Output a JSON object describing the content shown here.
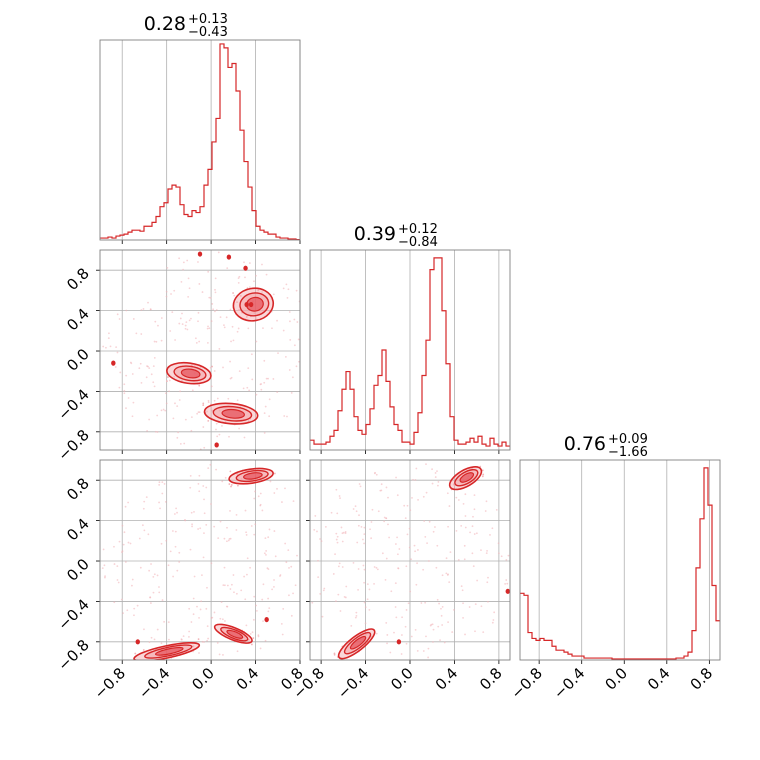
{
  "colors": {
    "line": "#d62728",
    "fill": "#f4a6aa",
    "dense": "#e0313c",
    "grid": "#b0b0b0",
    "frame": "#808080",
    "scatter": "#f2b6ba"
  },
  "chart_data": [
    {
      "type": "histogram",
      "panel": "diag-0",
      "title": {
        "value": "0.28",
        "plus": "+0.13",
        "minus": "−0.43"
      },
      "xlim": [
        -1.0,
        0.8
      ],
      "x_ticks": [
        -0.8,
        -0.4,
        0.0,
        0.4,
        0.8
      ],
      "x_tick_labels": [],
      "edges_start": -1.0,
      "edge_step": 0.036,
      "values": [
        0.01,
        0.01,
        0.015,
        0.01,
        0.02,
        0.025,
        0.03,
        0.04,
        0.05,
        0.05,
        0.045,
        0.07,
        0.07,
        0.09,
        0.12,
        0.17,
        0.19,
        0.26,
        0.28,
        0.27,
        0.18,
        0.13,
        0.12,
        0.15,
        0.14,
        0.17,
        0.28,
        0.36,
        0.5,
        0.62,
        1.0,
        0.98,
        0.88,
        0.9,
        0.76,
        0.56,
        0.4,
        0.27,
        0.15,
        0.07,
        0.05,
        0.04,
        0.03,
        0.03,
        0.015,
        0.01,
        0.01,
        0.005,
        0.005,
        0.002
      ]
    },
    {
      "type": "histogram",
      "panel": "diag-1",
      "title": {
        "value": "0.39",
        "plus": "+0.12",
        "minus": "−0.84"
      },
      "xlim": [
        -0.9,
        0.9
      ],
      "x_ticks": [
        -0.8,
        -0.4,
        0.0,
        0.4,
        0.8
      ],
      "x_tick_labels": [],
      "edges_start": -0.9,
      "edge_step": 0.036,
      "values": [
        0.05,
        0.03,
        0.03,
        0.03,
        0.04,
        0.07,
        0.1,
        0.2,
        0.31,
        0.4,
        0.31,
        0.17,
        0.1,
        0.08,
        0.13,
        0.21,
        0.33,
        0.38,
        0.51,
        0.35,
        0.22,
        0.13,
        0.1,
        0.04,
        0.04,
        0.03,
        0.09,
        0.19,
        0.38,
        0.56,
        0.92,
        0.98,
        0.98,
        0.71,
        0.44,
        0.17,
        0.05,
        0.03,
        0.03,
        0.04,
        0.06,
        0.04,
        0.07,
        0.03,
        0.02,
        0.06,
        0.03,
        0.02,
        0.04,
        0.02
      ]
    },
    {
      "type": "histogram",
      "panel": "diag-2",
      "title": {
        "value": "0.76",
        "plus": "+0.09",
        "minus": "−1.66"
      },
      "xlim": [
        -0.98,
        0.9
      ],
      "x_ticks": [
        -0.8,
        -0.4,
        0.0,
        0.4,
        0.8
      ],
      "x_tick_labels": [
        "−0.8",
        "−0.4",
        "0.0",
        "0.4",
        "0.8"
      ],
      "edges_start": -0.98,
      "edge_step": 0.0376,
      "values": [
        0.34,
        0.33,
        0.14,
        0.11,
        0.1,
        0.11,
        0.1,
        0.1,
        0.07,
        0.05,
        0.05,
        0.04,
        0.03,
        0.02,
        0.02,
        0.02,
        0.01,
        0.01,
        0.01,
        0.01,
        0.01,
        0.01,
        0.01,
        0.005,
        0.005,
        0.005,
        0.005,
        0.005,
        0.005,
        0.005,
        0.005,
        0.005,
        0.005,
        0.005,
        0.005,
        0.005,
        0.005,
        0.005,
        0.005,
        0.01,
        0.01,
        0.02,
        0.04,
        0.15,
        0.47,
        0.72,
        0.98,
        0.79,
        0.38,
        0.2
      ]
    },
    {
      "type": "scatter",
      "panel": "pair-1-0",
      "xlim": [
        -1.0,
        0.8
      ],
      "ylim": [
        -0.98,
        1.0
      ],
      "x_ticks": [
        -0.8,
        -0.4,
        0.0,
        0.4,
        0.8
      ],
      "y_ticks": [
        -0.8,
        -0.4,
        0.0,
        0.4,
        0.8
      ],
      "x_tick_labels": [],
      "y_tick_labels": [
        "−0.8",
        "−0.4",
        "0.0",
        "0.4",
        "0.8"
      ],
      "clusters": [
        {
          "x": 0.38,
          "y": 0.46,
          "rx": 0.18,
          "ry": 0.16,
          "rot": 10
        },
        {
          "x": -0.2,
          "y": -0.22,
          "rx": 0.2,
          "ry": 0.1,
          "rot": -8
        },
        {
          "x": 0.18,
          "y": -0.62,
          "rx": 0.24,
          "ry": 0.1,
          "rot": -5
        }
      ],
      "dense_points": [
        [
          0.32,
          0.46
        ],
        [
          0.36,
          0.46
        ],
        [
          -0.88,
          -0.12
        ],
        [
          -0.1,
          0.96
        ],
        [
          0.16,
          0.93
        ],
        [
          0.31,
          0.82
        ],
        [
          0.05,
          -0.93
        ]
      ]
    },
    {
      "type": "scatter",
      "panel": "pair-2-0",
      "xlim": [
        -1.0,
        0.8
      ],
      "ylim": [
        -0.98,
        1.0
      ],
      "x_ticks": [
        -0.8,
        -0.4,
        0.0,
        0.4,
        0.8
      ],
      "y_ticks": [
        -0.8,
        -0.4,
        0.0,
        0.4,
        0.8
      ],
      "x_tick_labels": [
        "−0.8",
        "−0.4",
        "0.0",
        "0.4",
        "0.8"
      ],
      "y_tick_labels": [
        "−0.8",
        "−0.4",
        "0.0",
        "0.4",
        "0.8"
      ],
      "clusters": [
        {
          "x": 0.36,
          "y": 0.84,
          "rx": 0.2,
          "ry": 0.07,
          "rot": 8
        },
        {
          "x": -0.4,
          "y": -0.9,
          "rx": 0.3,
          "ry": 0.06,
          "rot": 12
        },
        {
          "x": 0.2,
          "y": -0.72,
          "rx": 0.18,
          "ry": 0.06,
          "rot": -22
        }
      ],
      "dense_points": [
        [
          0.5,
          -0.58
        ],
        [
          -0.66,
          -0.8
        ]
      ]
    },
    {
      "type": "scatter",
      "panel": "pair-2-1",
      "xlim": [
        -0.9,
        0.9
      ],
      "ylim": [
        -0.98,
        1.0
      ],
      "x_ticks": [
        -0.8,
        -0.4,
        0.0,
        0.4,
        0.8
      ],
      "y_ticks": [
        -0.8,
        -0.4,
        0.0,
        0.4,
        0.8
      ],
      "x_tick_labels": [
        "−0.8",
        "−0.4",
        "0.0",
        "0.4",
        "0.8"
      ],
      "y_tick_labels": [],
      "clusters": [
        {
          "x": 0.5,
          "y": 0.82,
          "rx": 0.16,
          "ry": 0.08,
          "rot": 30
        },
        {
          "x": -0.48,
          "y": -0.82,
          "rx": 0.2,
          "ry": 0.07,
          "rot": 38
        }
      ],
      "dense_points": [
        [
          -0.1,
          -0.8
        ],
        [
          0.88,
          -0.3
        ]
      ]
    }
  ]
}
